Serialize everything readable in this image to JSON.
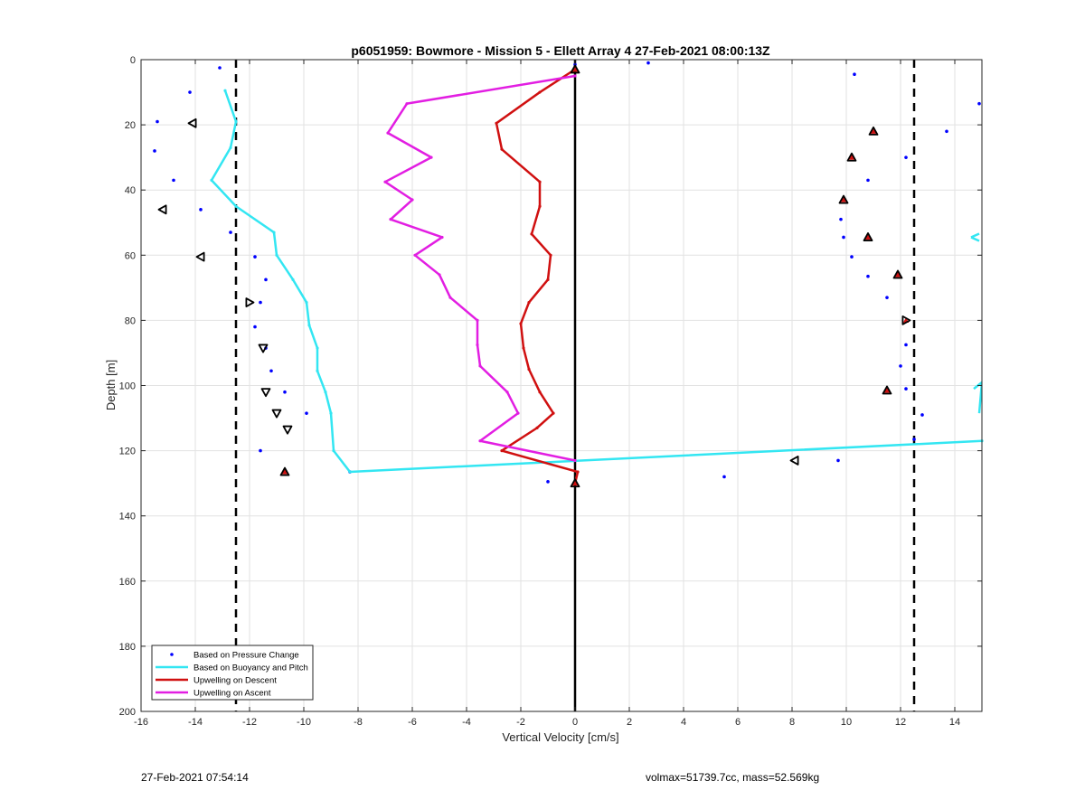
{
  "chart_data": {
    "type": "line",
    "title": "p6051959: Bowmore - Mission 5 - Ellett Array 4 27-Feb-2021 08:00:13Z",
    "xlabel": "Vertical Velocity [cm/s]",
    "ylabel": "Depth [m]",
    "xlim": [
      -16,
      15
    ],
    "ylim": [
      0,
      200
    ],
    "y_reversed": true,
    "grid": true,
    "x_ticks": [
      "-16",
      "-14",
      "-12",
      "-10",
      "-8",
      "-6",
      "-4",
      "-2",
      "0",
      "2",
      "4",
      "6",
      "8",
      "10",
      "12",
      "14"
    ],
    "y_ticks": [
      "0",
      "20",
      "40",
      "60",
      "80",
      "100",
      "120",
      "140",
      "160",
      "180",
      "200"
    ],
    "legend_position": "bottom-left",
    "reference_lines": {
      "vertical_dashed": [
        -12.5,
        12.5
      ],
      "vertical_solid": [
        0
      ]
    },
    "series": [
      {
        "name": "Based on Pressure Change",
        "style": "dots",
        "color": "#0000ff",
        "points": [
          [
            -13.1,
            2.5
          ],
          [
            -14.2,
            10
          ],
          [
            -15.4,
            19
          ],
          [
            -15.5,
            28
          ],
          [
            -14.8,
            37
          ],
          [
            -13.8,
            46
          ],
          [
            -12.7,
            53
          ],
          [
            -11.8,
            60.5
          ],
          [
            -11.4,
            67.5
          ],
          [
            -11.6,
            74.5
          ],
          [
            -11.8,
            82
          ],
          [
            -11.4,
            88.5
          ],
          [
            -11.2,
            95.5
          ],
          [
            -10.7,
            102
          ],
          [
            -9.9,
            108.5
          ],
          [
            -11.6,
            120
          ],
          [
            -8.3,
            126.5
          ],
          [
            -1.0,
            129.5
          ],
          [
            0.0,
            1.5
          ],
          [
            2.7,
            1
          ],
          [
            10.3,
            4.5
          ],
          [
            14.9,
            13.5
          ],
          [
            13.7,
            22
          ],
          [
            12.2,
            30
          ],
          [
            10.8,
            37
          ],
          [
            9.8,
            49
          ],
          [
            9.9,
            54.5
          ],
          [
            10.2,
            60.5
          ],
          [
            10.8,
            66.5
          ],
          [
            11.5,
            73
          ],
          [
            12.2,
            87.5
          ],
          [
            12.0,
            94
          ],
          [
            12.2,
            101
          ],
          [
            12.8,
            109
          ],
          [
            12.5,
            116.5
          ],
          [
            9.7,
            123
          ],
          [
            5.5,
            128
          ]
        ]
      },
      {
        "name": "Based on Buoyancy and Pitch",
        "style": "line",
        "color": "#33e6f2",
        "points": [
          [
            -12.9,
            9.5
          ],
          [
            -12.5,
            19
          ],
          [
            -12.7,
            27
          ],
          [
            -13.4,
            37
          ],
          [
            -12.5,
            45
          ],
          [
            -11.1,
            53
          ],
          [
            -11.0,
            60
          ],
          [
            -10.4,
            67.5
          ],
          [
            -9.9,
            74.5
          ],
          [
            -9.8,
            81.5
          ],
          [
            -9.5,
            88.5
          ],
          [
            -9.5,
            95.5
          ],
          [
            -9.2,
            102
          ],
          [
            -9.0,
            108.5
          ],
          [
            -8.9,
            120
          ],
          [
            -8.3,
            126.5
          ],
          [
            15.0,
            117
          ]
        ],
        "extra_points": [
          [
            14.7,
            101
          ],
          [
            15.0,
            99
          ],
          [
            14.9,
            108.5
          ]
        ],
        "extra_marker": [
          14.8,
          54.5
        ]
      },
      {
        "name": "Upwelling on Descent",
        "style": "line",
        "color": "#d01010",
        "points": [
          [
            0.0,
            3
          ],
          [
            -1.3,
            10
          ],
          [
            -2.9,
            19.5
          ],
          [
            -2.7,
            27.5
          ],
          [
            -1.3,
            37.5
          ],
          [
            -1.3,
            45
          ],
          [
            -1.6,
            53.5
          ],
          [
            -0.9,
            60
          ],
          [
            -1.0,
            67.5
          ],
          [
            -1.7,
            74.5
          ],
          [
            -2.0,
            81
          ],
          [
            -1.9,
            88.5
          ],
          [
            -1.7,
            95
          ],
          [
            -1.3,
            102
          ],
          [
            -0.8,
            108.5
          ],
          [
            -1.4,
            113
          ],
          [
            -2.7,
            120
          ],
          [
            0.1,
            126.5
          ],
          [
            0.0,
            130
          ]
        ]
      },
      {
        "name": "Upwelling on Ascent",
        "style": "line",
        "color": "#e21ee2",
        "points": [
          [
            0.0,
            5
          ],
          [
            -6.2,
            13.5
          ],
          [
            -6.9,
            22.5
          ],
          [
            -5.3,
            30
          ],
          [
            -7.0,
            37.5
          ],
          [
            -6.0,
            43
          ],
          [
            -6.8,
            49
          ],
          [
            -4.9,
            54.5
          ],
          [
            -5.9,
            60
          ],
          [
            -5.0,
            66
          ],
          [
            -4.6,
            73
          ],
          [
            -3.6,
            80
          ],
          [
            -3.6,
            87.5
          ],
          [
            -3.5,
            94
          ],
          [
            -2.5,
            102
          ],
          [
            -2.1,
            108.5
          ],
          [
            -3.5,
            117
          ],
          [
            0.0,
            123
          ]
        ]
      }
    ],
    "markers": {
      "red_triangles": [
        [
          0.0,
          3
        ],
        [
          11.0,
          22
        ],
        [
          10.2,
          30
        ],
        [
          9.9,
          43
        ],
        [
          10.8,
          54.5
        ],
        [
          11.9,
          66
        ],
        [
          12.2,
          80
        ],
        [
          11.5,
          101.5
        ],
        [
          -10.7,
          126.5
        ],
        [
          0.0,
          130
        ]
      ],
      "black_triangles": [
        {
          "x": 0.0,
          "y": 3,
          "dir": "up"
        },
        {
          "x": 11.0,
          "y": 22,
          "dir": "up"
        },
        {
          "x": 10.2,
          "y": 30,
          "dir": "up"
        },
        {
          "x": 9.9,
          "y": 43,
          "dir": "up"
        },
        {
          "x": 10.8,
          "y": 54.5,
          "dir": "up"
        },
        {
          "x": 11.9,
          "y": 66,
          "dir": "up"
        },
        {
          "x": 12.2,
          "y": 80,
          "dir": "right"
        },
        {
          "x": 11.5,
          "y": 101.5,
          "dir": "up"
        },
        {
          "x": -10.7,
          "y": 126.5,
          "dir": "up"
        },
        {
          "x": 0.0,
          "y": 130,
          "dir": "up"
        },
        {
          "x": -14.1,
          "y": 19.5,
          "dir": "left"
        },
        {
          "x": -15.2,
          "y": 46,
          "dir": "left"
        },
        {
          "x": -13.8,
          "y": 60.5,
          "dir": "left"
        },
        {
          "x": -12.0,
          "y": 74.5,
          "dir": "right"
        },
        {
          "x": -11.5,
          "y": 88.5,
          "dir": "down"
        },
        {
          "x": -11.4,
          "y": 102,
          "dir": "down"
        },
        {
          "x": -11.0,
          "y": 108.5,
          "dir": "down"
        },
        {
          "x": -10.6,
          "y": 113.5,
          "dir": "down"
        },
        {
          "x": 8.1,
          "y": 123,
          "dir": "left"
        }
      ]
    }
  },
  "footer": {
    "left": "27-Feb-2021 07:54:14",
    "right": "volmax=51739.7cc, mass=52.569kg"
  },
  "colors": {
    "pressure": "#0000ff",
    "buoyancy": "#33e6f2",
    "descent": "#d01010",
    "ascent": "#e21ee2"
  }
}
